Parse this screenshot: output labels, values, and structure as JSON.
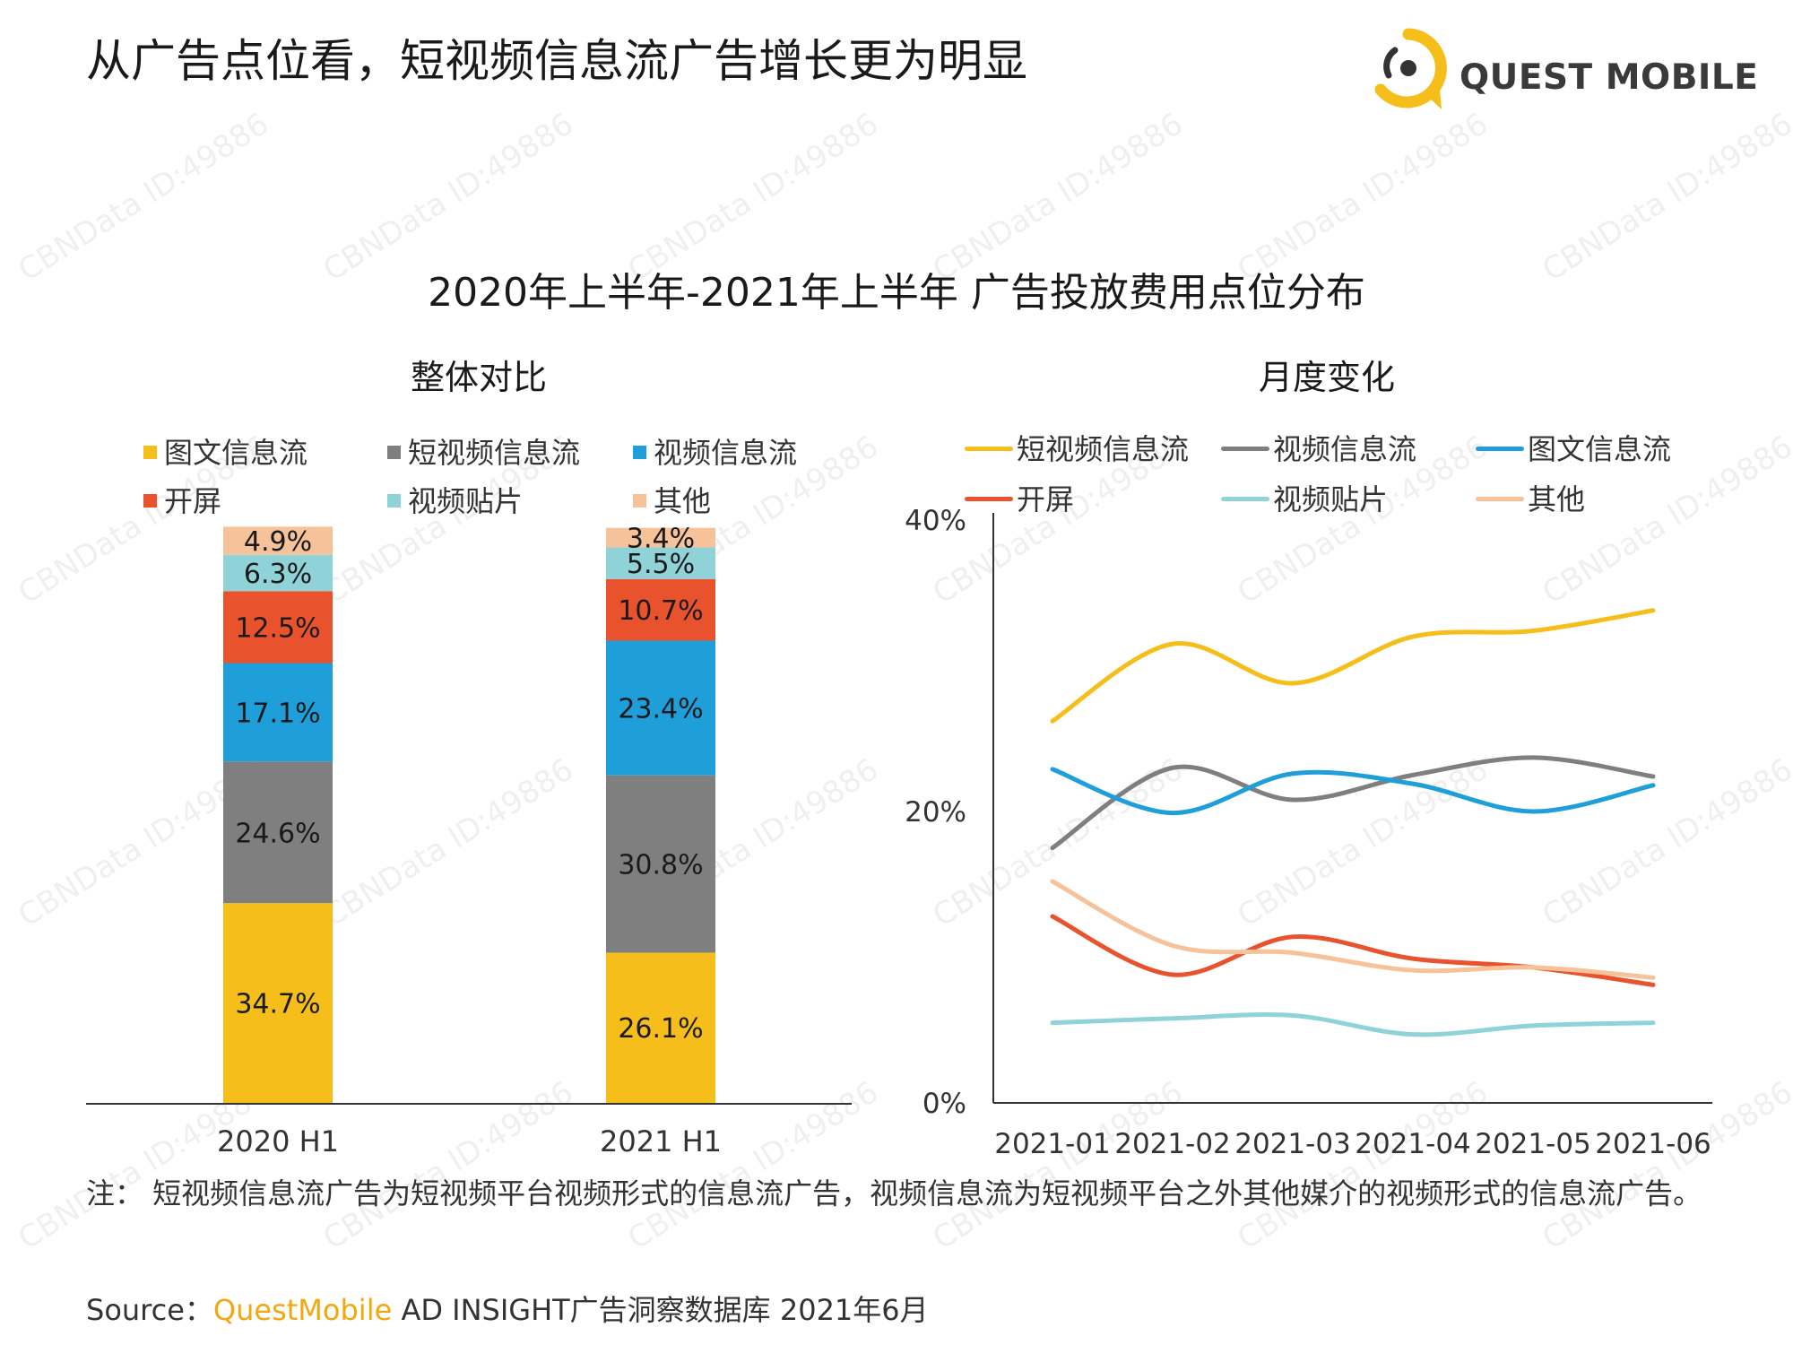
{
  "headline": "从广告点位看，短视频信息流广告增长更为明显",
  "logo_text": "QUEST MOBILE",
  "watermark": "CBNData ID:49886",
  "colors": {
    "yellow": "#F5BE1A",
    "gray": "#7F7F7F",
    "blue": "#1E9FDA",
    "red": "#E8532E",
    "cyan": "#8FD3D9",
    "peach": "#F6C29A"
  },
  "chart_data": [
    {
      "type": "bar",
      "stacked": true,
      "title": "2020年上半年-2021年上半年 广告投放费用点位分布",
      "subtitle": "整体对比",
      "categories": [
        "2020 H1",
        "2021 H1"
      ],
      "legend": [
        "图文信息流",
        "短视频信息流",
        "视频信息流",
        "开屏",
        "视频贴片",
        "其他"
      ],
      "stack_order": [
        "图文信息流",
        "短视频信息流",
        "视频信息流",
        "开屏",
        "视频贴片",
        "其他"
      ],
      "series": [
        {
          "name": "图文信息流",
          "color": "#F5BE1A",
          "values": [
            34.7,
            26.1
          ],
          "labels": [
            "34.7%",
            "26.1%"
          ]
        },
        {
          "name": "短视频信息流",
          "color": "#7F7F7F",
          "values": [
            24.6,
            30.8
          ],
          "labels": [
            "24.6%",
            "30.8%"
          ]
        },
        {
          "name": "视频信息流",
          "color": "#1E9FDA",
          "values": [
            17.1,
            23.4
          ],
          "labels": [
            "17.1%",
            "23.4%"
          ]
        },
        {
          "name": "开屏",
          "color": "#E8532E",
          "values": [
            12.5,
            10.7
          ],
          "labels": [
            "12.5%",
            "10.7%"
          ]
        },
        {
          "name": "视频贴片",
          "color": "#8FD3D9",
          "values": [
            6.3,
            5.5
          ],
          "labels": [
            "6.3%",
            "5.5%"
          ]
        },
        {
          "name": "其他",
          "color": "#F6C29A",
          "values": [
            4.9,
            3.4
          ],
          "labels": [
            "4.9%",
            "3.4%"
          ]
        }
      ],
      "ylim": [
        0,
        100
      ]
    },
    {
      "type": "line",
      "subtitle": "月度变化",
      "x": [
        "2021-01",
        "2021-02",
        "2021-03",
        "2021-04",
        "2021-05",
        "2021-06"
      ],
      "yticks": [
        "0%",
        "20%",
        "40%"
      ],
      "ylim": [
        0,
        40
      ],
      "legend_placement": "top",
      "series": [
        {
          "name": "短视频信息流",
          "color": "#F5BE1A",
          "values": [
            26.2,
            31.5,
            28.8,
            32.0,
            32.4,
            33.8
          ]
        },
        {
          "name": "视频信息流",
          "color": "#7F7F7F",
          "values": [
            17.5,
            23.0,
            20.8,
            22.5,
            23.7,
            22.4
          ]
        },
        {
          "name": "图文信息流",
          "color": "#1E9FDA",
          "values": [
            22.9,
            19.9,
            22.6,
            21.9,
            20.0,
            21.8
          ]
        },
        {
          "name": "开屏",
          "color": "#E8532E",
          "values": [
            12.8,
            8.8,
            11.4,
            9.9,
            9.3,
            8.1
          ]
        },
        {
          "name": "视频贴片",
          "color": "#8FD3D9",
          "values": [
            5.5,
            5.8,
            6.0,
            4.7,
            5.3,
            5.5
          ]
        },
        {
          "name": "其他",
          "color": "#F6C29A",
          "values": [
            15.2,
            10.8,
            10.3,
            9.1,
            9.3,
            8.6
          ]
        }
      ]
    }
  ],
  "note": "注：  短视频信息流广告为短视频平台视频形式的信息流广告，视频信息流为短视频平台之外其他媒介的视频形式的信息流广告。",
  "source": {
    "prefix": "Source：",
    "brand": "QuestMobile",
    "rest": " AD INSIGHT广告洞察数据库 2021年6月"
  }
}
